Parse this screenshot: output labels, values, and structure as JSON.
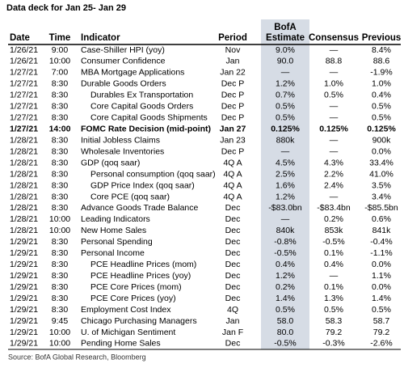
{
  "header": {
    "title": "Data deck for Jan 25- Jan 29"
  },
  "table": {
    "columns": [
      "Date",
      "Time",
      "Indicator",
      "Period",
      [
        "BofA",
        "Estimate"
      ],
      "Consensus",
      "Previous"
    ],
    "rows": [
      {
        "cells": [
          "1/26/21",
          "9:00",
          "Case-Shiller HPI (yoy)",
          "Nov",
          "9.0%",
          "—",
          "8.4%"
        ]
      },
      {
        "cells": [
          "1/26/21",
          "10:00",
          "Consumer Confidence",
          "Jan",
          "90.0",
          "88.8",
          "88.6"
        ]
      },
      {
        "cells": [
          "1/27/21",
          "7:00",
          "MBA Mortgage Applications",
          "Jan 22",
          "—",
          "—",
          "-1.9%"
        ]
      },
      {
        "cells": [
          "1/27/21",
          "8:30",
          "Durable Goods Orders",
          "Dec P",
          "1.2%",
          "1.0%",
          "1.0%"
        ]
      },
      {
        "cells": [
          "1/27/21",
          "8:30",
          "Durables Ex Transportation",
          "Dec P",
          "0.7%",
          "0.5%",
          "0.4%"
        ],
        "indent": true
      },
      {
        "cells": [
          "1/27/21",
          "8:30",
          "Core Capital Goods Orders",
          "Dec P",
          "0.5%",
          "—",
          "0.5%"
        ],
        "indent": true
      },
      {
        "cells": [
          "1/27/21",
          "8:30",
          "Core Capital Goods Shipments",
          "Dec P",
          "0.5%",
          "—",
          "0.5%"
        ],
        "indent": true
      },
      {
        "cells": [
          "1/27/21",
          "14:00",
          "FOMC Rate Decision (mid-point)",
          "Jan 27",
          "0.125%",
          "0.125%",
          "0.125%"
        ],
        "bold": true
      },
      {
        "cells": [
          "1/28/21",
          "8:30",
          "Initial Jobless Claims",
          "Jan 23",
          "880k",
          "—",
          "900k"
        ]
      },
      {
        "cells": [
          "1/28/21",
          "8:30",
          "Wholesale Inventories",
          "Dec P",
          "—",
          "—",
          "0.0%"
        ]
      },
      {
        "cells": [
          "1/28/21",
          "8:30",
          "GDP (qoq saar)",
          "4Q A",
          "4.5%",
          "4.3%",
          "33.4%"
        ]
      },
      {
        "cells": [
          "1/28/21",
          "8:30",
          "Personal consumption (qoq saar)",
          "4Q A",
          "2.5%",
          "2.2%",
          "41.0%"
        ],
        "indent": true
      },
      {
        "cells": [
          "1/28/21",
          "8:30",
          "GDP Price Index (qoq saar)",
          "4Q A",
          "1.6%",
          "2.4%",
          "3.5%"
        ],
        "indent": true
      },
      {
        "cells": [
          "1/28/21",
          "8:30",
          "Core PCE (qoq saar)",
          "4Q A",
          "1.2%",
          "—",
          "3.4%"
        ],
        "indent": true
      },
      {
        "cells": [
          "1/28/21",
          "8:30",
          "Advance Goods Trade Balance",
          "Dec",
          "-$83.0bn",
          "-$83.4bn",
          "-$85.5bn"
        ]
      },
      {
        "cells": [
          "1/28/21",
          "10:00",
          "Leading Indicators",
          "Dec",
          "—",
          "0.2%",
          "0.6%"
        ]
      },
      {
        "cells": [
          "1/28/21",
          "10:00",
          "New Home Sales",
          "Dec",
          "840k",
          "853k",
          "841k"
        ]
      },
      {
        "cells": [
          "1/29/21",
          "8:30",
          "Personal Spending",
          "Dec",
          "-0.8%",
          "-0.5%",
          "-0.4%"
        ]
      },
      {
        "cells": [
          "1/29/21",
          "8:30",
          "Personal Income",
          "Dec",
          "-0.5%",
          "0.1%",
          "-1.1%"
        ]
      },
      {
        "cells": [
          "1/29/21",
          "8:30",
          "PCE Headline Prices (mom)",
          "Dec",
          "0.4%",
          "0.4%",
          "0.0%"
        ],
        "indent": true
      },
      {
        "cells": [
          "1/29/21",
          "8:30",
          "PCE Headline Prices (yoy)",
          "Dec",
          "1.2%",
          "—",
          "1.1%"
        ],
        "indent": true
      },
      {
        "cells": [
          "1/29/21",
          "8:30",
          "PCE Core Prices (mom)",
          "Dec",
          "0.2%",
          "0.1%",
          "0.0%"
        ],
        "indent": true
      },
      {
        "cells": [
          "1/29/21",
          "8:30",
          "PCE Core Prices (yoy)",
          "Dec",
          "1.4%",
          "1.3%",
          "1.4%"
        ],
        "indent": true
      },
      {
        "cells": [
          "1/29/21",
          "8:30",
          "Employment Cost Index",
          "4Q",
          "0.5%",
          "0.5%",
          "0.5%"
        ]
      },
      {
        "cells": [
          "1/29/21",
          "9:45",
          "Chicago Purchasing Managers",
          "Jan",
          "58.0",
          "58.3",
          "58.7"
        ]
      },
      {
        "cells": [
          "1/29/21",
          "10:00",
          "U. of Michigan Sentiment",
          "Jan F",
          "80.0",
          "79.2",
          "79.2"
        ]
      },
      {
        "cells": [
          "1/29/21",
          "10:00",
          "Pending Home Sales",
          "Dec",
          "-0.5%",
          "-0.3%",
          "-2.6%"
        ]
      }
    ]
  },
  "footer": {
    "source": "Source: BofA Global Research, Bloomberg"
  }
}
